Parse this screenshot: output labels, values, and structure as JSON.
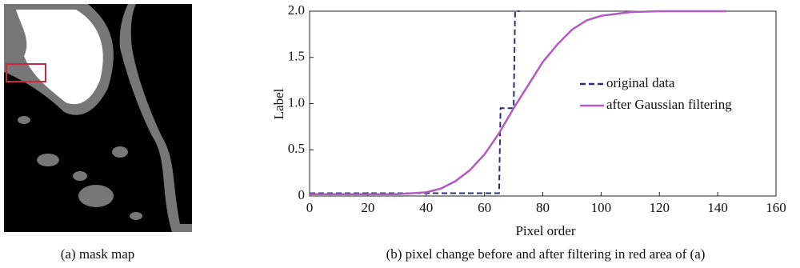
{
  "image_caption": "(a) mask map",
  "chart_data": {
    "type": "line",
    "caption": "(b) pixel change before and after filtering in red area of (a)",
    "x_label": "Pixel order",
    "y_label": "Label",
    "xlim": [
      0,
      160
    ],
    "ylim": [
      0,
      2
    ],
    "xticks": [
      0,
      20,
      40,
      60,
      80,
      100,
      120,
      140,
      160
    ],
    "yticks": [
      0,
      0.5,
      {
        "value": 1,
        "label": "1.0"
      },
      1.5,
      {
        "value": 2,
        "label": "2.0"
      }
    ],
    "legend": "center right",
    "series": [
      {
        "name": "original data",
        "color": "#2b2f7a",
        "dash": true,
        "x": [
          0,
          65,
          65.5,
          70,
          70.5,
          72
        ],
        "values": [
          0.03,
          0.03,
          0.95,
          0.95,
          2.0,
          2.0
        ]
      },
      {
        "name": "after Gaussian filtering",
        "color": "#b05cc0",
        "dash": false,
        "x": [
          0,
          10,
          20,
          30,
          40,
          45,
          50,
          55,
          60,
          65,
          70,
          75,
          80,
          85,
          90,
          95,
          100,
          110,
          120,
          130,
          143
        ],
        "values": [
          0.02,
          0.02,
          0.02,
          0.02,
          0.04,
          0.08,
          0.16,
          0.28,
          0.45,
          0.68,
          0.95,
          1.2,
          1.45,
          1.64,
          1.8,
          1.9,
          1.95,
          1.99,
          2.0,
          2.0,
          2.0
        ]
      }
    ]
  }
}
